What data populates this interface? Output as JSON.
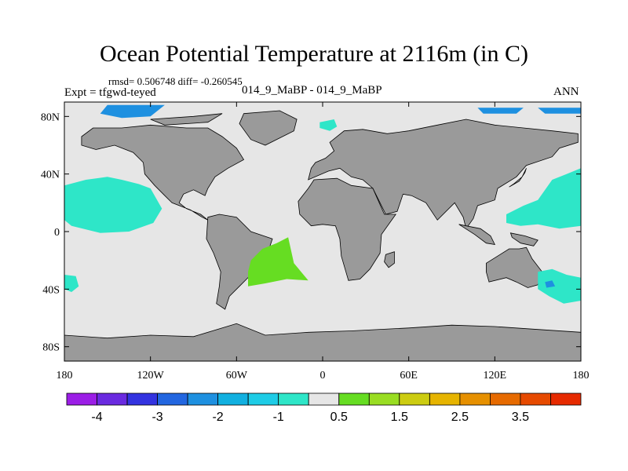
{
  "title": "Ocean Potential Temperature at 2116m (in C)",
  "stats": "rmsd= 0.506748 diff= -0.260545",
  "experiment": "Expt = tfgwd-teyed",
  "comparison": "014_9_MaBP - 014_9_MaBP",
  "season": "ANN",
  "colors": {
    "land": "#9a9a9a",
    "neutral": "#e6e6e6",
    "cyan": "#2ee6c8",
    "blue": "#1e90e0",
    "green": "#66dd22"
  },
  "chart_data": {
    "type": "heatmap",
    "title": "Ocean Potential Temperature at 2116m (in C)",
    "xlim": [
      -180,
      180
    ],
    "ylim": [
      -90,
      90
    ],
    "x_ticks": [
      "180",
      "120W",
      "60W",
      "0",
      "60E",
      "120E",
      "180"
    ],
    "y_ticks": [
      "80N",
      "40N",
      "0",
      "40S",
      "80S"
    ],
    "colorbar": {
      "labels": [
        "-4",
        "-3",
        "-2",
        "-1",
        "0.5",
        "1.5",
        "2.5",
        "3.5"
      ],
      "colors": [
        "#9b1ee6",
        "#6a2ae0",
        "#3333e0",
        "#2266e0",
        "#1e90e0",
        "#11b0e0",
        "#1ecce6",
        "#2ee6c8",
        "#e6e6e6",
        "#66dd22",
        "#99dd22",
        "#cccc11",
        "#e6b400",
        "#e69000",
        "#e66a00",
        "#e64a00",
        "#e62a00"
      ]
    }
  }
}
